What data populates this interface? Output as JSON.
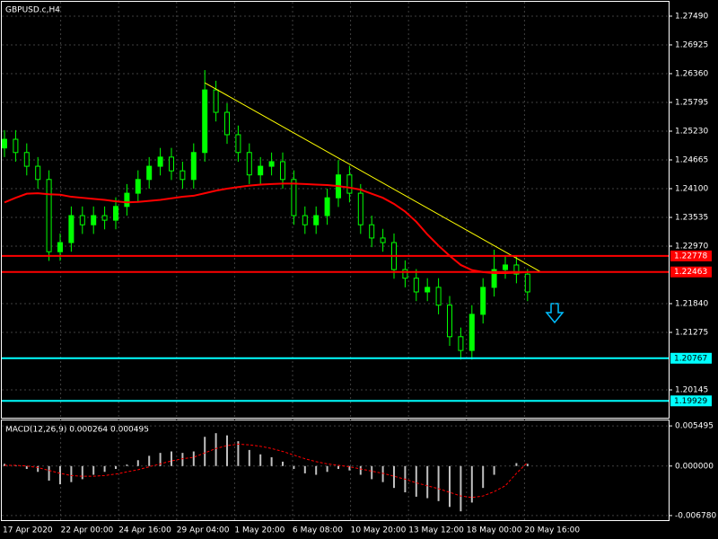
{
  "chart_data": {
    "type": "candlestick",
    "title": "GBPUSD.c,H4",
    "color": "#00ff00",
    "open": [
      1.249,
      1.2507,
      1.2481,
      1.2454,
      1.2428,
      1.2286,
      1.2304,
      1.2357,
      1.2339,
      1.2357,
      1.2348,
      1.2375,
      1.2401,
      1.2428,
      1.2454,
      1.2472,
      1.2445,
      1.2428,
      1.2481,
      1.2604,
      1.256,
      1.2516,
      1.2481,
      1.2437,
      1.2454,
      1.2463,
      1.2428,
      1.2357,
      1.2339,
      1.2357,
      1.2392,
      1.2437,
      1.2401,
      1.2339,
      1.2313,
      1.2304,
      1.2251,
      1.2234,
      1.2207,
      1.2216,
      1.2181,
      1.2119,
      1.2092,
      1.2163,
      1.2216,
      1.2251,
      1.226,
      1.2242
    ],
    "high": [
      1.2525,
      1.2525,
      1.2499,
      1.2472,
      1.2446,
      1.2322,
      1.2375,
      1.2375,
      1.2375,
      1.2375,
      1.2393,
      1.2419,
      1.2446,
      1.2472,
      1.249,
      1.249,
      1.2463,
      1.2499,
      1.2643,
      1.2622,
      1.2578,
      1.2534,
      1.2499,
      1.2472,
      1.2481,
      1.2481,
      1.2446,
      1.2375,
      1.2375,
      1.241,
      1.2466,
      1.2455,
      1.2419,
      1.2357,
      1.2331,
      1.2322,
      1.2269,
      1.2252,
      1.2234,
      1.2234,
      1.2199,
      1.2137,
      1.2181,
      1.2234,
      1.229,
      1.2278,
      1.2278,
      1.2252
    ],
    "low": [
      1.2472,
      1.2463,
      1.2436,
      1.241,
      1.2268,
      1.2268,
      1.2286,
      1.2321,
      1.2321,
      1.233,
      1.233,
      1.2357,
      1.2383,
      1.241,
      1.2436,
      1.2427,
      1.241,
      1.241,
      1.2463,
      1.2542,
      1.2498,
      1.2463,
      1.2419,
      1.2419,
      1.2436,
      1.241,
      1.2339,
      1.2321,
      1.2321,
      1.2339,
      1.2374,
      1.2383,
      1.2321,
      1.2295,
      1.2286,
      1.2233,
      1.2216,
      1.2189,
      1.2189,
      1.2163,
      1.2101,
      1.2074,
      1.2074,
      1.2145,
      1.2198,
      1.2233,
      1.2224,
      1.2189
    ],
    "close": [
      1.2507,
      1.2481,
      1.2454,
      1.2428,
      1.2286,
      1.2304,
      1.2357,
      1.2339,
      1.2357,
      1.2348,
      1.2375,
      1.2401,
      1.2428,
      1.2454,
      1.2472,
      1.2445,
      1.2428,
      1.2481,
      1.2604,
      1.256,
      1.2516,
      1.2481,
      1.2437,
      1.2454,
      1.2463,
      1.2428,
      1.2357,
      1.2339,
      1.2357,
      1.2392,
      1.2437,
      1.2401,
      1.2339,
      1.2313,
      1.2304,
      1.2251,
      1.2234,
      1.2207,
      1.2216,
      1.2181,
      1.2119,
      1.2092,
      1.2163,
      1.2216,
      1.2251,
      1.226,
      1.2242,
      1.2207
    ],
    "moving_average": {
      "color": "#ff0000",
      "values": [
        1.2383,
        1.2392,
        1.24,
        1.2401,
        1.2399,
        1.2398,
        1.2394,
        1.2392,
        1.239,
        1.2388,
        1.2385,
        1.2383,
        1.2384,
        1.2386,
        1.2388,
        1.2391,
        1.2394,
        1.2396,
        1.2401,
        1.2406,
        1.241,
        1.2413,
        1.2416,
        1.2418,
        1.2419,
        1.242,
        1.242,
        1.2419,
        1.2418,
        1.2417,
        1.2415,
        1.2412,
        1.2408,
        1.24,
        1.2392,
        1.238,
        1.2365,
        1.2345,
        1.232,
        1.2298,
        1.2278,
        1.226,
        1.225,
        1.2246,
        1.2244,
        1.2244,
        1.2245,
        1.2246
      ]
    },
    "trendline": {
      "color": "#ffff00",
      "values": [
        1.2618,
        1.2246
      ]
    },
    "levels": [
      {
        "value": 1.22778,
        "color": "#ff0000"
      },
      {
        "value": 1.22463,
        "color": "#ff0000"
      },
      {
        "value": 1.20767,
        "color": "#00ffff"
      },
      {
        "value": 1.19929,
        "color": "#00ffff"
      }
    ],
    "ylim": [
      1.19598,
      1.27772
    ],
    "yticks": [
      {
        "value": 1.2749,
        "label": "1.27490"
      },
      1.26925,
      {
        "value": 1.2636,
        "label": "1.26360"
      },
      1.25795,
      {
        "value": 1.2523,
        "label": "1.25230"
      },
      1.24665,
      {
        "value": 1.241,
        "label": "1.24100"
      },
      1.23535,
      {
        "value": 1.2297,
        "label": "1.22970"
      },
      {
        "value": 1.2184,
        "label": "1.21840"
      },
      1.21275,
      1.20145
    ],
    "grid": true,
    "x_labels": [
      "17 Apr 2020",
      "22 Apr 00:00",
      "24 Apr 16:00",
      "29 Apr 04:00",
      "1 May 20:00",
      "6 May 08:00",
      "10 May 20:00",
      "13 May 12:00",
      "18 May 00:00",
      "20 May 16:00"
    ],
    "macd": {
      "label": "MACD(12,26,9) 0.000264 0.000495",
      "hist_color": "#c0c0c0",
      "signal_color": "#ff0000",
      "histogram": [
        0.0003,
        0.0001,
        -0.0004,
        -0.0008,
        -0.002,
        -0.0025,
        -0.0022,
        -0.0018,
        -0.0012,
        -0.0008,
        -0.0004,
        0.0002,
        0.0008,
        0.0014,
        0.0018,
        0.002,
        0.0018,
        0.002,
        0.004,
        0.0045,
        0.0042,
        0.0034,
        0.0022,
        0.0016,
        0.0012,
        0.0006,
        -0.0004,
        -0.001,
        -0.0012,
        -0.0008,
        -0.0004,
        -0.0006,
        -0.0012,
        -0.0018,
        -0.0022,
        -0.003,
        -0.0036,
        -0.0042,
        -0.0044,
        -0.0048,
        -0.0056,
        -0.0062,
        -0.005,
        -0.003,
        -0.0012,
        0.0,
        0.0004,
        0.0003
      ],
      "signal": [
        0.0001,
        0.0001,
        0.0,
        -0.0002,
        -0.0006,
        -0.001,
        -0.0013,
        -0.0014,
        -0.0014,
        -0.0013,
        -0.0011,
        -0.0008,
        -0.0005,
        -0.0001,
        0.0003,
        0.0007,
        0.001,
        0.0012,
        0.0018,
        0.0024,
        0.0028,
        0.003,
        0.0029,
        0.0027,
        0.0024,
        0.002,
        0.0015,
        0.001,
        0.0006,
        0.0003,
        0.0001,
        -0.0001,
        -0.0004,
        -0.0007,
        -0.001,
        -0.0014,
        -0.0018,
        -0.0023,
        -0.0027,
        -0.0031,
        -0.0036,
        -0.0041,
        -0.0043,
        -0.0041,
        -0.0035,
        -0.0027,
        -0.001,
        0.0005
      ],
      "ylim": [
        -0.00753,
        0.006369
      ],
      "yticks": [
        0.005495,
        {
          "value": 0,
          "label": "0.000000"
        },
        {
          "value": -0.00678,
          "label": "-0.006780"
        }
      ]
    }
  }
}
